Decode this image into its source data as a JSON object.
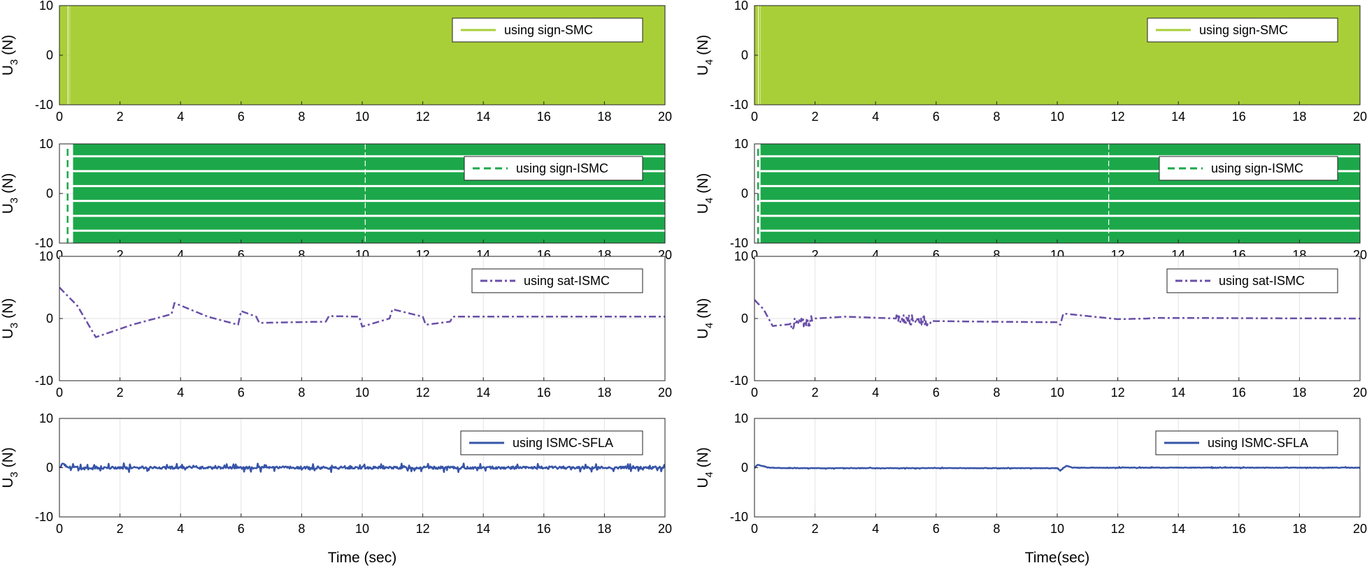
{
  "chart_data": [
    {
      "type": "line",
      "id": "p00",
      "ylabel_main": "U",
      "ylabel_sub": "3",
      "ylabel_unit": " (N)",
      "xlabel": "",
      "legend": "using sign-SMC",
      "legend_position": "top-right",
      "style": "dense-solid",
      "color": "#a9cf38",
      "xlim": [
        0,
        20
      ],
      "ylim": [
        -10,
        10
      ],
      "xticks": [
        "0",
        "2",
        "4",
        "6",
        "8",
        "10",
        "12",
        "14",
        "16",
        "18",
        "20"
      ],
      "yticks": [
        "10",
        "0",
        "-10"
      ],
      "grid": true,
      "initial_gap_x": [
        0.27,
        0.35
      ]
    },
    {
      "type": "line",
      "id": "p01",
      "ylabel_main": "U",
      "ylabel_sub": "4",
      "ylabel_unit": " (N)",
      "xlabel": "",
      "legend": "using sign-SMC",
      "legend_position": "top-right",
      "style": "dense-solid",
      "color": "#a9cf38",
      "xlim": [
        0,
        20
      ],
      "ylim": [
        -10,
        10
      ],
      "xticks": [
        "0",
        "2",
        "4",
        "6",
        "8",
        "10",
        "12",
        "14",
        "16",
        "18",
        "20"
      ],
      "yticks": [
        "10",
        "0",
        "-10"
      ],
      "grid": true,
      "initial_gap_x": [
        0.12,
        0.2
      ]
    },
    {
      "type": "line",
      "id": "p10",
      "ylabel_main": "U",
      "ylabel_sub": "3",
      "ylabel_unit": " (N)",
      "xlabel": "",
      "legend": "using sign-ISMC",
      "legend_position": "top-right",
      "style": "dense-dashed",
      "color": "#1ca84a",
      "xlim": [
        0,
        20
      ],
      "ylim": [
        -10,
        10
      ],
      "xticks": [
        "0",
        "2",
        "4",
        "6",
        "8",
        "10",
        "12",
        "14",
        "16",
        "18",
        "20"
      ],
      "yticks": [
        "10",
        "0",
        "-10"
      ],
      "grid": true,
      "band_gaps_y": [
        -7.5,
        -4.5,
        -1.5,
        1.5,
        4.5,
        7.5
      ],
      "vertical_gaps_x": [
        10.1
      ]
    },
    {
      "type": "line",
      "id": "p11",
      "ylabel_main": "U",
      "ylabel_sub": "4",
      "ylabel_unit": " (N)",
      "xlabel": "",
      "legend": "using sign-ISMC",
      "legend_position": "top-right",
      "style": "dense-dashed",
      "color": "#1ca84a",
      "xlim": [
        0,
        20
      ],
      "ylim": [
        -10,
        10
      ],
      "xticks": [
        "0",
        "2",
        "4",
        "6",
        "8",
        "10",
        "12",
        "14",
        "16",
        "18",
        "20"
      ],
      "yticks": [
        "10",
        "0",
        "-10"
      ],
      "grid": true,
      "band_gaps_y": [
        -7.5,
        -4.5,
        -1.5,
        1.5,
        4.5,
        7.5
      ],
      "vertical_gaps_x": [
        11.7
      ]
    },
    {
      "type": "line",
      "id": "p20",
      "ylabel_main": "U",
      "ylabel_sub": "3",
      "ylabel_unit": " (N)",
      "xlabel": "",
      "legend": "using sat-ISMC",
      "legend_position": "top-right",
      "style": "dashdot",
      "color": "#6a4fa8",
      "xlim": [
        0,
        20
      ],
      "ylim": [
        -10,
        10
      ],
      "xticks": [
        "0",
        "2",
        "4",
        "6",
        "8",
        "10",
        "12",
        "14",
        "16",
        "18",
        "20"
      ],
      "yticks": [
        "10",
        "0",
        "-10"
      ],
      "grid": true,
      "x": [
        0,
        0.6,
        1.2,
        2.4,
        3.7,
        3.8,
        4.9,
        5.9,
        6.0,
        6.5,
        6.6,
        8.8,
        8.9,
        9.9,
        10.0,
        10.9,
        11.0,
        12.0,
        12.1,
        12.9,
        13.0,
        20
      ],
      "y": [
        5,
        2,
        -3,
        -1,
        0.7,
        2.5,
        0.3,
        -1,
        1.2,
        0.3,
        -0.7,
        -0.5,
        0.4,
        0.3,
        -1.3,
        0,
        1.5,
        0.3,
        -1,
        -0.5,
        0.3,
        0.3
      ]
    },
    {
      "type": "line",
      "id": "p21",
      "ylabel_main": "U",
      "ylabel_sub": "4",
      "ylabel_unit": " (N)",
      "xlabel": "",
      "legend": "using sat-ISMC",
      "legend_position": "top-right",
      "style": "dashdot",
      "color": "#6a4fa8",
      "xlim": [
        0,
        20
      ],
      "ylim": [
        -10,
        10
      ],
      "xticks": [
        "0",
        "2",
        "4",
        "6",
        "8",
        "10",
        "12",
        "14",
        "16",
        "18",
        "20"
      ],
      "yticks": [
        "10",
        "0",
        "-10"
      ],
      "grid": true,
      "x": [
        0,
        0.3,
        0.6,
        1.0,
        1.6,
        2.0,
        3.0,
        4.7,
        5.8,
        7.5,
        10.0,
        10.1,
        10.2,
        11.8,
        12.0,
        13.0,
        13.2,
        20
      ],
      "y": [
        3,
        1.5,
        -1.2,
        -1,
        -0.7,
        0,
        0.3,
        0,
        -0.4,
        -0.5,
        -0.6,
        -1,
        0.8,
        0,
        -0.1,
        0,
        0.1,
        0
      ],
      "noise_bursts": [
        [
          4.7,
          5.8,
          0.8
        ],
        [
          1.2,
          1.9,
          0.9
        ]
      ]
    },
    {
      "type": "line",
      "id": "p30",
      "ylabel_main": "U",
      "ylabel_sub": "3",
      "ylabel_unit": " (N)",
      "xlabel": "Time (sec)",
      "legend": "using ISMC-SFLA",
      "legend_position": "top-right",
      "style": "solid",
      "color": "#3654a8",
      "xlim": [
        0,
        20
      ],
      "ylim": [
        -10,
        10
      ],
      "xticks": [
        "0",
        "2",
        "4",
        "6",
        "8",
        "10",
        "12",
        "14",
        "16",
        "18",
        "20"
      ],
      "yticks": [
        "10",
        "0",
        "-10"
      ],
      "grid": true,
      "x": [
        0,
        0.1,
        0.3,
        1.0,
        1.2,
        20
      ],
      "y": [
        0,
        0.6,
        0,
        -0.2,
        0,
        0
      ],
      "noise_amplitude": 0.9
    },
    {
      "type": "line",
      "id": "p31",
      "ylabel_main": "U",
      "ylabel_sub": "4",
      "ylabel_unit": " (N)",
      "xlabel": "Time(sec)",
      "legend": "using ISMC-SFLA",
      "legend_position": "top-right",
      "style": "solid",
      "color": "#3654a8",
      "xlim": [
        0,
        20
      ],
      "ylim": [
        -10,
        10
      ],
      "xticks": [
        "0",
        "2",
        "4",
        "6",
        "8",
        "10",
        "12",
        "14",
        "16",
        "18",
        "20"
      ],
      "yticks": [
        "10",
        "0",
        "-10"
      ],
      "grid": true,
      "x": [
        0,
        0.1,
        0.5,
        1.0,
        10.0,
        10.1,
        10.3,
        10.5,
        20
      ],
      "y": [
        0,
        0.6,
        0,
        -0.1,
        -0.1,
        -0.6,
        0.4,
        0,
        0
      ],
      "noise_amplitude": 0.15
    }
  ]
}
